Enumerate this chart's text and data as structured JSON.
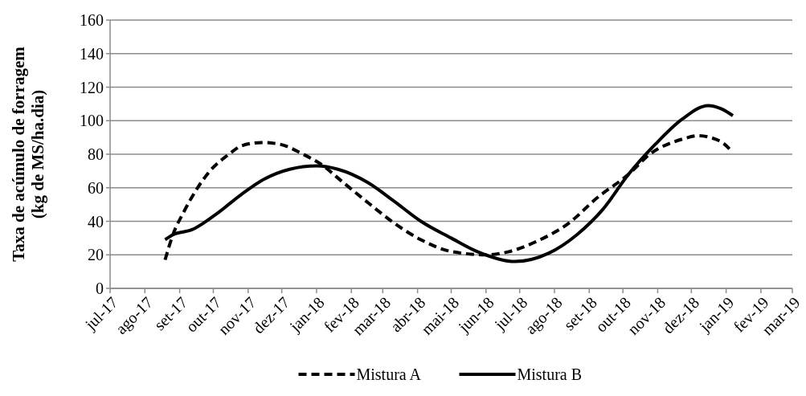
{
  "chart_data": {
    "type": "line",
    "ylabel": "Taxa de acúmulo de forragem\n(kg de MS/ha.dia)",
    "xlim": [
      "2017-07-01",
      "2019-03-01"
    ],
    "xticks": [
      {
        "value": "2017-07-01",
        "label": "jul-17"
      },
      {
        "value": "2017-08-01",
        "label": "ago-17"
      },
      {
        "value": "2017-09-01",
        "label": "set-17"
      },
      {
        "value": "2017-10-01",
        "label": "out-17"
      },
      {
        "value": "2017-11-01",
        "label": "nov-17"
      },
      {
        "value": "2017-12-01",
        "label": "dez-17"
      },
      {
        "value": "2018-01-01",
        "label": "jan-18"
      },
      {
        "value": "2018-02-01",
        "label": "fev-18"
      },
      {
        "value": "2018-03-01",
        "label": "mar-18"
      },
      {
        "value": "2018-04-01",
        "label": "abr-18"
      },
      {
        "value": "2018-05-01",
        "label": "mai-18"
      },
      {
        "value": "2018-06-01",
        "label": "jun-18"
      },
      {
        "value": "2018-07-01",
        "label": "jul-18"
      },
      {
        "value": "2018-08-01",
        "label": "ago-18"
      },
      {
        "value": "2018-09-01",
        "label": "set-18"
      },
      {
        "value": "2018-10-01",
        "label": "out-18"
      },
      {
        "value": "2018-11-01",
        "label": "nov-18"
      },
      {
        "value": "2018-12-01",
        "label": "dez-18"
      },
      {
        "value": "2019-01-01",
        "label": "jan-19"
      },
      {
        "value": "2019-02-01",
        "label": "fev-19"
      },
      {
        "value": "2019-03-01",
        "label": "mar-19"
      }
    ],
    "ylim": [
      0,
      160
    ],
    "yticks": [
      0,
      20,
      40,
      60,
      80,
      100,
      120,
      140,
      160
    ],
    "grid": "y",
    "legend": "bottom",
    "marker": "none",
    "series": [
      {
        "name": "Mistura A",
        "color": "#000000",
        "line_style": "dashed",
        "x": [
          "2017-08-19",
          "2017-08-26",
          "2017-09-05",
          "2017-09-17",
          "2017-09-28",
          "2017-10-15",
          "2017-10-26",
          "2017-11-13",
          "2017-11-29",
          "2017-12-20",
          "2018-01-05",
          "2018-01-25",
          "2018-02-16",
          "2018-03-11",
          "2018-04-04",
          "2018-05-01",
          "2018-06-01",
          "2018-06-22",
          "2018-07-16",
          "2018-08-14",
          "2018-09-08",
          "2018-10-06",
          "2018-10-25",
          "2018-11-23",
          "2018-12-07",
          "2018-12-26",
          "2019-01-07"
        ],
        "values": [
          17,
          32,
          46,
          60,
          70,
          80,
          85,
          87,
          86,
          80,
          74,
          63,
          51,
          39,
          29,
          22,
          20,
          22,
          28,
          39,
          54,
          68,
          80,
          89,
          91,
          88,
          81
        ]
      },
      {
        "name": "Mistura B",
        "color": "#000000",
        "line_style": "solid",
        "x": [
          "2017-08-19",
          "2017-08-26",
          "2017-09-12",
          "2017-10-03",
          "2017-10-26",
          "2017-11-15",
          "2017-12-08",
          "2018-01-01",
          "2018-01-20",
          "2018-02-16",
          "2018-03-11",
          "2018-04-04",
          "2018-05-01",
          "2018-05-24",
          "2018-06-27",
          "2018-07-27",
          "2018-08-21",
          "2018-09-13",
          "2018-10-06",
          "2018-10-30",
          "2018-11-23",
          "2018-12-16",
          "2018-12-28",
          "2019-01-07"
        ],
        "values": [
          29,
          32,
          35,
          44,
          56,
          65,
          71,
          73,
          71,
          63,
          52,
          40,
          30,
          22,
          16,
          21,
          32,
          47,
          68,
          86,
          101,
          109,
          107,
          103
        ]
      }
    ]
  }
}
